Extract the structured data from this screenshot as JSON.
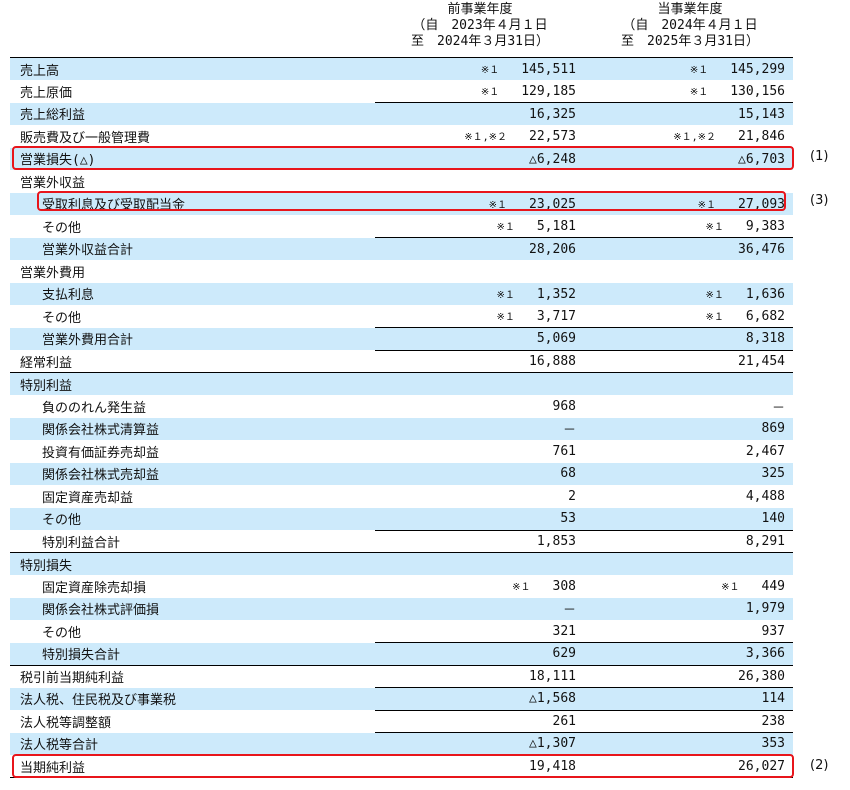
{
  "header": {
    "prior": {
      "title": "前事業年度",
      "from": "（自　2023年４月１日",
      "to": "至　2024年３月31日）"
    },
    "current": {
      "title": "当事業年度",
      "from": "（自　2024年４月１日",
      "to": "至　2025年３月31日）"
    }
  },
  "rows": [
    {
      "label": "売上高",
      "prior_note": "※１",
      "prior": "145,511",
      "current_note": "※１",
      "current": "145,299"
    },
    {
      "label": "売上原価",
      "prior_note": "※１",
      "prior": "129,185",
      "current_note": "※１",
      "current": "130,156"
    },
    {
      "label": "売上総利益",
      "prior": "16,325",
      "current": "15,143"
    },
    {
      "label": "販売費及び一般管理費",
      "prior_note": "※１,※２",
      "prior": "22,573",
      "current_note": "※１,※２",
      "current": "21,846"
    },
    {
      "label": "営業損失(△)",
      "prior": "△6,248",
      "current": "△6,703"
    },
    {
      "label": "営業外収益"
    },
    {
      "label": "受取利息及び受取配当金",
      "prior_note": "※１",
      "prior": "23,025",
      "current_note": "※１",
      "current": "27,093"
    },
    {
      "label": "その他",
      "prior_note": "※１",
      "prior": "5,181",
      "current_note": "※１",
      "current": "9,383"
    },
    {
      "label": "営業外収益合計",
      "prior": "28,206",
      "current": "36,476"
    },
    {
      "label": "営業外費用"
    },
    {
      "label": "支払利息",
      "prior_note": "※１",
      "prior": "1,352",
      "current_note": "※１",
      "current": "1,636"
    },
    {
      "label": "その他",
      "prior_note": "※１",
      "prior": "3,717",
      "current_note": "※１",
      "current": "6,682"
    },
    {
      "label": "営業外費用合計",
      "prior": "5,069",
      "current": "8,318"
    },
    {
      "label": "経常利益",
      "prior": "16,888",
      "current": "21,454"
    },
    {
      "label": "特別利益"
    },
    {
      "label": "負ののれん発生益",
      "prior": "968",
      "current": "－"
    },
    {
      "label": "関係会社株式清算益",
      "prior": "－",
      "current": "869"
    },
    {
      "label": "投資有価証券売却益",
      "prior": "761",
      "current": "2,467"
    },
    {
      "label": "関係会社株式売却益",
      "prior": "68",
      "current": "325"
    },
    {
      "label": "固定資産売却益",
      "prior": "2",
      "current": "4,488"
    },
    {
      "label": "その他",
      "prior": "53",
      "current": "140"
    },
    {
      "label": "特別利益合計",
      "prior": "1,853",
      "current": "8,291"
    },
    {
      "label": "特別損失"
    },
    {
      "label": "固定資産除売却損",
      "prior_note": "※１",
      "prior": "308",
      "current_note": "※１",
      "current": "449"
    },
    {
      "label": "関係会社株式評価損",
      "prior": "－",
      "current": "1,979"
    },
    {
      "label": "その他",
      "prior": "321",
      "current": "937"
    },
    {
      "label": "特別損失合計",
      "prior": "629",
      "current": "3,366"
    },
    {
      "label": "税引前当期純利益",
      "prior": "18,111",
      "current": "26,380"
    },
    {
      "label": "法人税、住民税及び事業税",
      "prior": "△1,568",
      "current": "114"
    },
    {
      "label": "法人税等調整額",
      "prior": "261",
      "current": "238"
    },
    {
      "label": "法人税等合計",
      "prior": "△1,307",
      "current": "353"
    },
    {
      "label": "当期純利益",
      "prior": "19,418",
      "current": "26,027"
    }
  ],
  "annotations": {
    "a1": "(1)",
    "a3": "(3)",
    "a2": "(2)"
  },
  "colors": {
    "row_shade": "#cdeafb",
    "highlight": "#e8151b"
  }
}
